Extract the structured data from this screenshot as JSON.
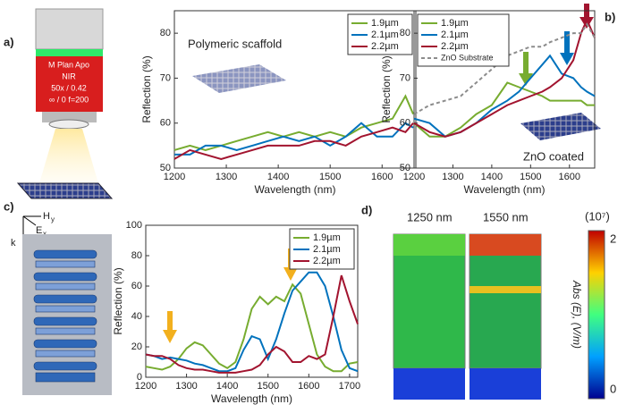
{
  "panels": [
    "a)",
    "b)",
    "c)",
    "d)"
  ],
  "objective": {
    "lines": [
      "M Plan Apo",
      "NIR",
      "50x / 0.42",
      "∞ / 0  f=200"
    ]
  },
  "axes_diagram": {
    "h": "H",
    "h_sub": "y",
    "e": "E",
    "e_sub": "x",
    "k": "k"
  },
  "field_maps": {
    "labels": [
      "1250 nm",
      "1550 nm"
    ],
    "colorbar_exponent": "(10⁷)",
    "colorbar_max": "2",
    "colorbar_min": "0",
    "colorbar_label": "Abs (E), (V/m)"
  },
  "chart_data": [
    {
      "type": "line",
      "annotation": "Polymeric scaffold",
      "xlabel": "Wavelength (nm)",
      "ylabel": "Reflection (%)",
      "x": [
        1200,
        1230,
        1260,
        1290,
        1320,
        1350,
        1380,
        1410,
        1440,
        1470,
        1500,
        1530,
        1560,
        1590,
        1620,
        1645,
        1660
      ],
      "series": [
        {
          "name": "1.9µm",
          "color": "#77ac30",
          "values": [
            54,
            55,
            54,
            55,
            56,
            57,
            58,
            57,
            58,
            57,
            58,
            57,
            59,
            60,
            61,
            66,
            62
          ]
        },
        {
          "name": "2.1µm",
          "color": "#0072bd",
          "values": [
            53,
            53,
            55,
            55,
            54,
            55,
            56,
            57,
            56,
            57,
            55,
            57,
            60,
            57,
            57,
            60,
            59
          ]
        },
        {
          "name": "2.2µm",
          "color": "#a2142f",
          "values": [
            52,
            54,
            53,
            52,
            53,
            54,
            55,
            55,
            55,
            56,
            56,
            55,
            57,
            58,
            59,
            58,
            60
          ]
        }
      ],
      "xlim": [
        1200,
        1665
      ],
      "xticks": [
        1200,
        1300,
        1400,
        1500,
        1600
      ],
      "ylim": [
        50,
        85
      ],
      "yticks": [
        50,
        60,
        70,
        80
      ],
      "legend": "upper right"
    },
    {
      "type": "line",
      "annotation": "ZnO coated",
      "xlabel": "Wavelength (nm)",
      "ylabel": "Reflection (%)",
      "x": [
        1200,
        1240,
        1280,
        1320,
        1360,
        1400,
        1440,
        1470,
        1500,
        1530,
        1550,
        1580,
        1610,
        1630,
        1645,
        1665
      ],
      "series": [
        {
          "name": "1.9µm",
          "color": "#77ac30",
          "values": [
            60,
            57,
            57,
            59,
            62,
            64,
            69,
            68,
            67,
            66,
            65,
            65,
            65,
            65,
            64,
            64
          ]
        },
        {
          "name": "2.1µm",
          "color": "#0072bd",
          "values": [
            61,
            60,
            57,
            58,
            60,
            63,
            65,
            67,
            70,
            73,
            75,
            71,
            70,
            68,
            67,
            66
          ]
        },
        {
          "name": "2.2µm",
          "color": "#a2142f",
          "values": [
            60,
            58,
            57,
            58,
            60,
            62,
            64,
            65,
            66,
            67,
            68,
            70,
            74,
            80,
            83,
            79
          ]
        },
        {
          "name": "ZnO Substrate",
          "color": "#8c8c8c",
          "dashed": true,
          "values": [
            62,
            64,
            65,
            66,
            69,
            72,
            75,
            76,
            77,
            77,
            78,
            79,
            80,
            80,
            82,
            79
          ]
        }
      ],
      "xlim": [
        1200,
        1665
      ],
      "xticks": [
        1200,
        1300,
        1400,
        1500,
        1600
      ],
      "ylim": [
        50,
        85
      ],
      "yticks": [
        50,
        60,
        70,
        80
      ],
      "legend": "upper left"
    },
    {
      "type": "line",
      "xlabel": "Wavelength (nm)",
      "ylabel": "Reflection (%)",
      "x": [
        1200,
        1220,
        1240,
        1260,
        1280,
        1300,
        1320,
        1340,
        1360,
        1380,
        1400,
        1420,
        1440,
        1460,
        1480,
        1500,
        1520,
        1540,
        1560,
        1580,
        1600,
        1620,
        1640,
        1660,
        1680,
        1700,
        1720
      ],
      "series": [
        {
          "name": "1.9µm",
          "color": "#77ac30",
          "values": [
            7,
            6,
            5,
            7,
            12,
            19,
            23,
            21,
            15,
            9,
            6,
            10,
            25,
            45,
            53,
            48,
            53,
            50,
            61,
            55,
            35,
            15,
            7,
            4,
            4,
            9,
            10
          ]
        },
        {
          "name": "2.1µm",
          "color": "#0072bd",
          "values": [
            15,
            14,
            12,
            13,
            12,
            11,
            9,
            8,
            6,
            4,
            4,
            6,
            18,
            27,
            25,
            12,
            25,
            42,
            57,
            63,
            69,
            69,
            60,
            40,
            18,
            6,
            4
          ]
        },
        {
          "name": "2.2µm",
          "color": "#a2142f",
          "values": [
            15,
            14,
            14,
            12,
            8,
            6,
            5,
            5,
            4,
            3,
            3,
            3,
            4,
            5,
            8,
            15,
            20,
            17,
            10,
            10,
            14,
            12,
            15,
            40,
            67,
            50,
            35
          ]
        }
      ],
      "xlim": [
        1200,
        1720
      ],
      "xticks": [
        1200,
        1300,
        1400,
        1500,
        1600,
        1700
      ],
      "ylim": [
        0,
        100
      ],
      "yticks": [
        0,
        20,
        40,
        60,
        80,
        100
      ],
      "legend": "upper right"
    }
  ]
}
